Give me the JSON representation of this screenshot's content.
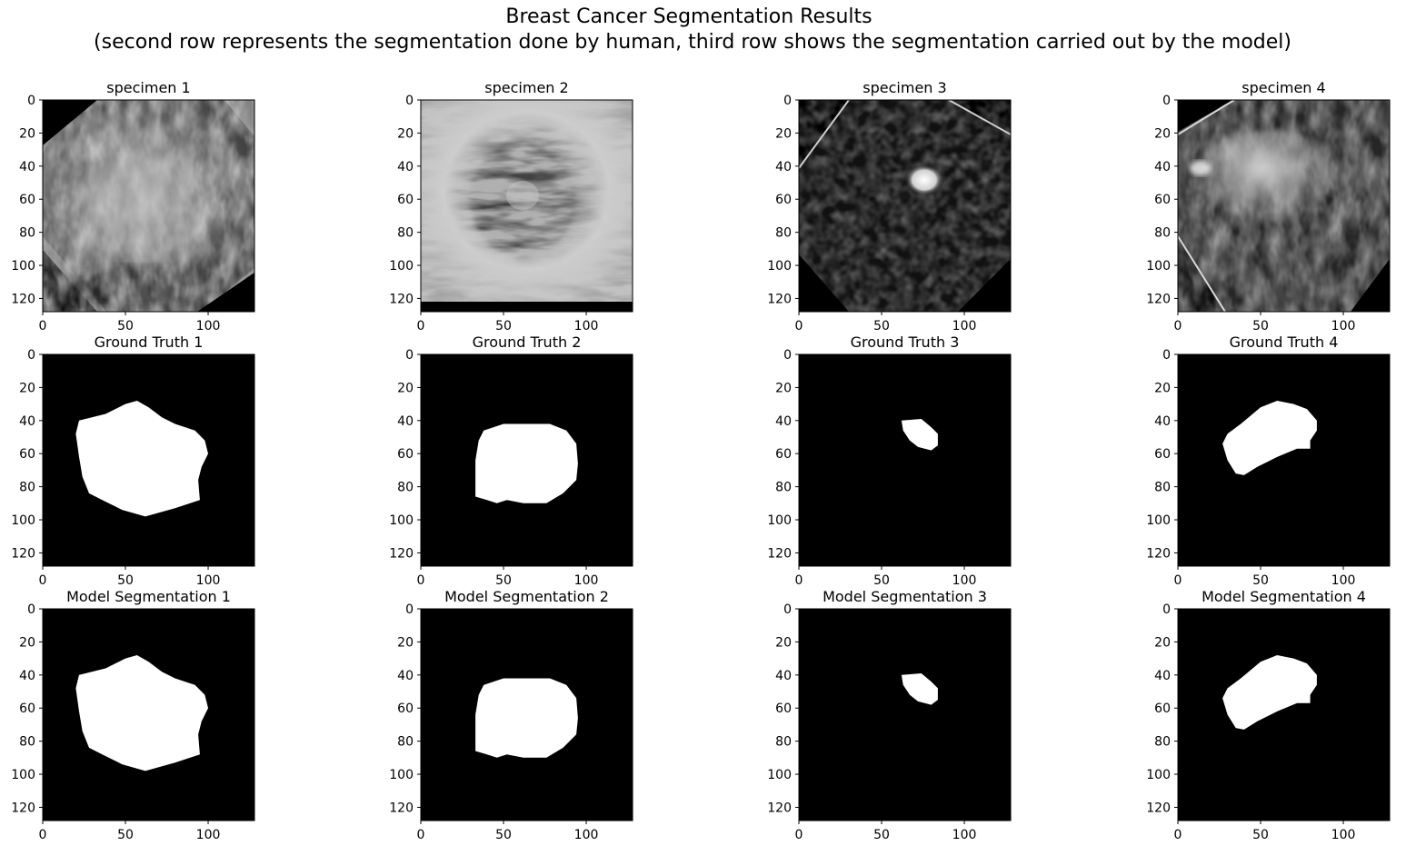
{
  "figure": {
    "title": "Breast Cancer Segmentation Results",
    "subtitle": "(second row represents the segmentation done by human, third row shows the segmentation carried out by the model)"
  },
  "colors": {
    "background": "#000000",
    "mask": "#ffffff",
    "axis": "#000000"
  },
  "chart_data": {
    "type": "heatmap",
    "grid": false,
    "colormap": "gray",
    "xticks": [
      0,
      50,
      100
    ],
    "yticks": [
      0,
      20,
      40,
      60,
      80,
      100,
      120
    ],
    "xlim": [
      0,
      128
    ],
    "ylim": [
      128,
      0
    ],
    "rows": [
      {
        "kind": "image",
        "panels": [
          {
            "title": "specimen 1"
          },
          {
            "title": "specimen 2"
          },
          {
            "title": "specimen 3"
          },
          {
            "title": "specimen 4"
          }
        ]
      },
      {
        "kind": "mask",
        "panels": [
          {
            "title": "Ground Truth 1",
            "polygon": [
              [
                22,
                40
              ],
              [
                38,
                36
              ],
              [
                50,
                30
              ],
              [
                57,
                28
              ],
              [
                64,
                32
              ],
              [
                72,
                38
              ],
              [
                80,
                42
              ],
              [
                92,
                46
              ],
              [
                98,
                52
              ],
              [
                100,
                60
              ],
              [
                96,
                68
              ],
              [
                94,
                76
              ],
              [
                95,
                88
              ],
              [
                80,
                93
              ],
              [
                62,
                98
              ],
              [
                48,
                94
              ],
              [
                36,
                88
              ],
              [
                28,
                84
              ],
              [
                24,
                74
              ],
              [
                22,
                62
              ],
              [
                20,
                48
              ]
            ]
          },
          {
            "title": "Ground Truth 2",
            "polygon": [
              [
                38,
                46
              ],
              [
                50,
                42
              ],
              [
                64,
                42
              ],
              [
                78,
                42
              ],
              [
                88,
                46
              ],
              [
                94,
                54
              ],
              [
                95,
                66
              ],
              [
                94,
                76
              ],
              [
                86,
                84
              ],
              [
                76,
                90
              ],
              [
                62,
                90
              ],
              [
                52,
                88
              ],
              [
                46,
                90
              ],
              [
                40,
                88
              ],
              [
                33,
                86
              ],
              [
                33,
                64
              ],
              [
                35,
                52
              ]
            ]
          },
          {
            "title": "Ground Truth 3",
            "polygon": [
              [
                62,
                40
              ],
              [
                74,
                39
              ],
              [
                80,
                44
              ],
              [
                84,
                48
              ],
              [
                84,
                55
              ],
              [
                80,
                58
              ],
              [
                72,
                56
              ],
              [
                67,
                52
              ],
              [
                63,
                46
              ]
            ]
          },
          {
            "title": "Ground Truth 4",
            "polygon": [
              [
                38,
                42
              ],
              [
                50,
                32
              ],
              [
                60,
                28
              ],
              [
                70,
                30
              ],
              [
                78,
                33
              ],
              [
                84,
                40
              ],
              [
                84,
                46
              ],
              [
                80,
                52
              ],
              [
                80,
                57
              ],
              [
                72,
                57
              ],
              [
                60,
                62
              ],
              [
                48,
                68
              ],
              [
                40,
                73
              ],
              [
                35,
                72
              ],
              [
                30,
                64
              ],
              [
                27,
                54
              ],
              [
                30,
                48
              ]
            ]
          }
        ]
      },
      {
        "kind": "mask",
        "panels": [
          {
            "title": "Model Segmentation 1",
            "polygon": [
              [
                22,
                40
              ],
              [
                38,
                36
              ],
              [
                50,
                30
              ],
              [
                57,
                28
              ],
              [
                64,
                32
              ],
              [
                72,
                38
              ],
              [
                80,
                42
              ],
              [
                92,
                46
              ],
              [
                98,
                52
              ],
              [
                100,
                60
              ],
              [
                96,
                68
              ],
              [
                94,
                76
              ],
              [
                95,
                88
              ],
              [
                80,
                93
              ],
              [
                62,
                98
              ],
              [
                48,
                94
              ],
              [
                36,
                88
              ],
              [
                28,
                84
              ],
              [
                24,
                74
              ],
              [
                22,
                62
              ],
              [
                20,
                48
              ]
            ]
          },
          {
            "title": "Model Segmentation 2",
            "polygon": [
              [
                38,
                46
              ],
              [
                50,
                42
              ],
              [
                64,
                42
              ],
              [
                78,
                42
              ],
              [
                88,
                46
              ],
              [
                94,
                54
              ],
              [
                95,
                66
              ],
              [
                94,
                76
              ],
              [
                86,
                84
              ],
              [
                76,
                90
              ],
              [
                62,
                90
              ],
              [
                52,
                88
              ],
              [
                46,
                90
              ],
              [
                40,
                88
              ],
              [
                33,
                86
              ],
              [
                33,
                64
              ],
              [
                35,
                52
              ]
            ]
          },
          {
            "title": "Model Segmentation 3",
            "polygon": [
              [
                62,
                40
              ],
              [
                74,
                39
              ],
              [
                80,
                44
              ],
              [
                84,
                48
              ],
              [
                84,
                55
              ],
              [
                80,
                58
              ],
              [
                72,
                56
              ],
              [
                67,
                52
              ],
              [
                63,
                46
              ]
            ]
          },
          {
            "title": "Model Segmentation 4",
            "polygon": [
              [
                38,
                42
              ],
              [
                50,
                32
              ],
              [
                60,
                28
              ],
              [
                70,
                30
              ],
              [
                78,
                33
              ],
              [
                84,
                40
              ],
              [
                84,
                46
              ],
              [
                80,
                52
              ],
              [
                80,
                57
              ],
              [
                72,
                57
              ],
              [
                60,
                62
              ],
              [
                48,
                68
              ],
              [
                40,
                73
              ],
              [
                35,
                72
              ],
              [
                30,
                64
              ],
              [
                27,
                54
              ],
              [
                30,
                48
              ]
            ]
          }
        ]
      }
    ]
  }
}
